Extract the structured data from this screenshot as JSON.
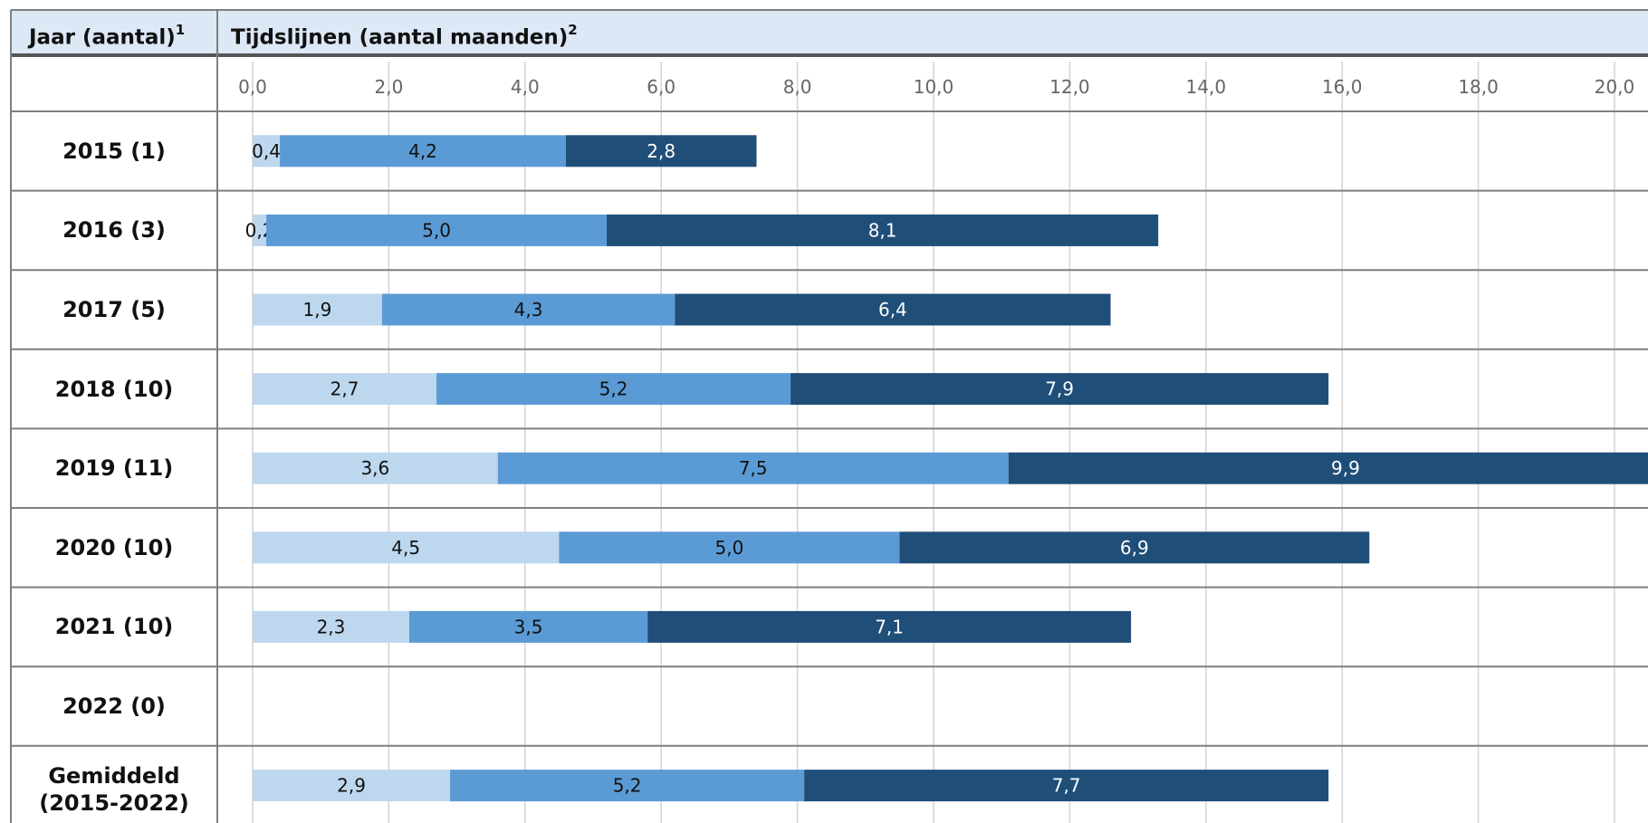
{
  "header": {
    "col1": "Jaar (aantal)",
    "col1_sup": "1",
    "col2": "Tijdslijnen (aantal maanden)",
    "col2_sup": "2"
  },
  "colors": {
    "seg1": "#bdd7ee",
    "seg2": "#5b9bd5",
    "seg3": "#1f4e79",
    "header_bg": "#dce8f5",
    "grid": "#d4d4d4",
    "border": "#7f7f7f"
  },
  "chart_data": {
    "type": "bar",
    "orientation": "horizontal",
    "stacked": true,
    "xlim": [
      0,
      20
    ],
    "x_ticks": [
      "0,0",
      "2,0",
      "4,0",
      "6,0",
      "8,0",
      "10,0",
      "12,0",
      "14,0",
      "16,0",
      "18,0",
      "20,0"
    ],
    "categories": [
      "2015 (1)",
      "2016 (3)",
      "2017 (5)",
      "2018 (10)",
      "2019 (11)",
      "2020 (10)",
      "2021 (10)",
      "2022 (0)",
      "Gemiddeld (2015-2022)"
    ],
    "category_lines": [
      [
        "2015 (1)"
      ],
      [
        "2016 (3)"
      ],
      [
        "2017 (5)"
      ],
      [
        "2018 (10)"
      ],
      [
        "2019 (11)"
      ],
      [
        "2020 (10)"
      ],
      [
        "2021 (10)"
      ],
      [
        "2022 (0)"
      ],
      [
        "Gemiddeld",
        "(2015-2022)"
      ]
    ],
    "series": [
      {
        "values": [
          0.4,
          0.2,
          1.9,
          2.7,
          3.6,
          4.5,
          2.3,
          null,
          2.9
        ],
        "labels": [
          "0,4",
          "0,2",
          "1,9",
          "2,7",
          "3,6",
          "4,5",
          "2,3",
          "",
          "2,9"
        ]
      },
      {
        "values": [
          4.2,
          5.0,
          4.3,
          5.2,
          7.5,
          5.0,
          3.5,
          null,
          5.2
        ],
        "labels": [
          "4,2",
          "5,0",
          "4,3",
          "5,2",
          "7,5",
          "5,0",
          "3,5",
          "",
          "5,2"
        ]
      },
      {
        "values": [
          2.8,
          8.1,
          6.4,
          7.9,
          9.9,
          6.9,
          7.1,
          null,
          7.7
        ],
        "labels": [
          "2,8",
          "8,1",
          "6,4",
          "7,9",
          "9,9",
          "6,9",
          "7,1",
          "",
          "7,7"
        ]
      }
    ],
    "grid": true,
    "legend": "none"
  }
}
